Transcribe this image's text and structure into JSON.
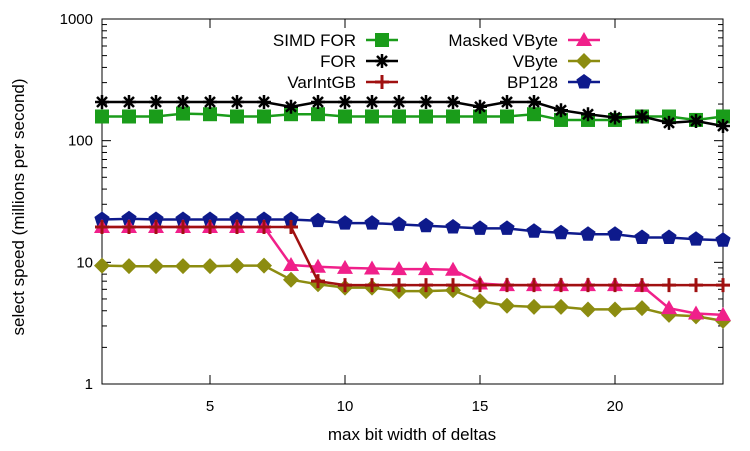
{
  "chart_data": {
    "type": "line",
    "title": "",
    "xlabel": "max bit width of deltas",
    "ylabel": "select speed (millions per second)",
    "y_scale": "log",
    "xlim": [
      1,
      24
    ],
    "ylim": [
      1,
      1000
    ],
    "x_ticks": [
      5,
      10,
      15,
      20
    ],
    "y_ticks": [
      1,
      10,
      100,
      1000
    ],
    "x_tick_labels": [
      "5",
      "10",
      "15",
      "20"
    ],
    "y_tick_labels": [
      "1",
      "10",
      "100",
      "1000"
    ],
    "grid": false,
    "legend_position": "top-right",
    "x": [
      1,
      2,
      3,
      4,
      5,
      6,
      7,
      8,
      9,
      10,
      11,
      12,
      13,
      14,
      15,
      16,
      17,
      18,
      19,
      20,
      21,
      22,
      23,
      24
    ],
    "series": [
      {
        "name": "SIMD FOR",
        "color": "#1a9c1a",
        "marker": "square",
        "values": [
          158,
          158,
          158,
          167,
          165,
          158,
          158,
          165,
          165,
          158,
          158,
          158,
          158,
          158,
          158,
          158,
          165,
          148,
          148,
          148,
          158,
          158,
          148,
          158
        ]
      },
      {
        "name": "FOR",
        "color": "#000000",
        "marker": "asterisk",
        "values": [
          208,
          208,
          208,
          208,
          208,
          208,
          208,
          190,
          208,
          208,
          208,
          208,
          208,
          208,
          190,
          208,
          208,
          178,
          165,
          155,
          158,
          140,
          145,
          132
        ]
      },
      {
        "name": "VarIntGB",
        "color": "#a01010",
        "marker": "plus",
        "values": [
          19.5,
          19.5,
          19.5,
          19.5,
          19.5,
          19.5,
          19.5,
          19.5,
          7.0,
          6.5,
          6.5,
          6.5,
          6.5,
          6.5,
          6.5,
          6.5,
          6.5,
          6.5,
          6.5,
          6.5,
          6.5,
          6.5,
          6.5,
          6.5
        ]
      },
      {
        "name": "Masked VByte",
        "color": "#f0208a",
        "marker": "triangle",
        "values": [
          19.5,
          19.5,
          19.5,
          19.5,
          19.5,
          19.5,
          19.5,
          9.5,
          9.2,
          9.0,
          8.9,
          8.8,
          8.8,
          8.7,
          6.7,
          6.5,
          6.5,
          6.5,
          6.5,
          6.5,
          6.4,
          4.2,
          3.8,
          3.7
        ]
      },
      {
        "name": "VByte",
        "color": "#8c8c10",
        "marker": "diamond",
        "values": [
          9.4,
          9.3,
          9.3,
          9.3,
          9.3,
          9.4,
          9.4,
          7.2,
          6.6,
          6.2,
          6.2,
          5.8,
          5.8,
          5.9,
          4.8,
          4.4,
          4.3,
          4.3,
          4.1,
          4.1,
          4.2,
          3.7,
          3.6,
          3.3
        ]
      },
      {
        "name": "BP128",
        "color": "#0e1a8c",
        "marker": "pentagon",
        "values": [
          22.5,
          22.8,
          22.5,
          22.5,
          22.5,
          22.5,
          22.5,
          22.5,
          22,
          21,
          21,
          20.5,
          20,
          19.5,
          19,
          19,
          18,
          17.5,
          17,
          17,
          16,
          16,
          15.5,
          15.2
        ]
      }
    ]
  }
}
